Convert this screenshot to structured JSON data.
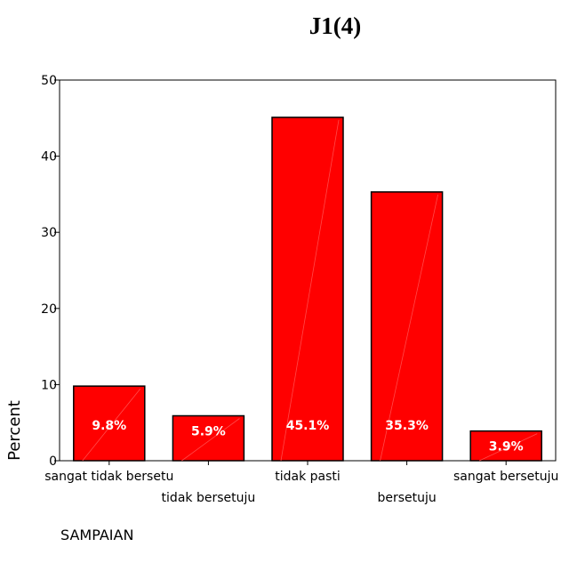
{
  "chart_data": {
    "type": "bar",
    "title": "J1(4)",
    "xlabel": "SAMPAIAN",
    "ylabel": "Percent",
    "ylim": [
      0,
      50
    ],
    "yticks": [
      0,
      10,
      20,
      30,
      40,
      50
    ],
    "categories": [
      "sangat tidak bersetu",
      "tidak bersetuju",
      "tidak pasti",
      "bersetuju",
      "sangat bersetuju"
    ],
    "values": [
      9.8,
      5.9,
      45.1,
      35.3,
      3.9
    ],
    "data_labels": [
      "9.8%",
      "5.9%",
      "45.1%",
      "35.3%",
      "3.9%"
    ],
    "grid": false,
    "legend": false,
    "bar_color": "#ff0000"
  }
}
